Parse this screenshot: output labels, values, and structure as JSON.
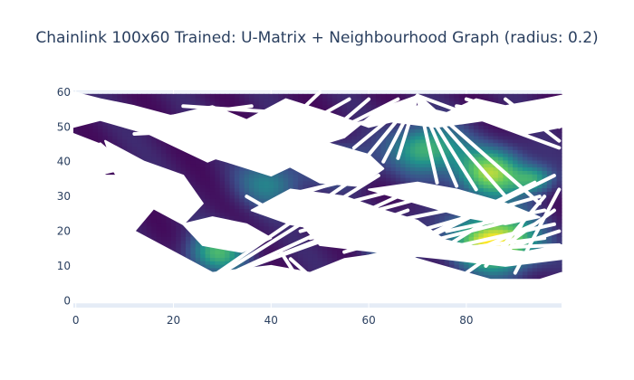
{
  "chart_data": {
    "type": "heatmap",
    "title": "Chainlink 100x60 Trained: U-Matrix + Neighbourhood Graph (radius: 0.2)",
    "xlabel": "",
    "ylabel": "",
    "xlim": [
      -0.5,
      99.5
    ],
    "ylim": [
      -2,
      60.5
    ],
    "x_ticks": [
      0,
      20,
      40,
      60,
      80
    ],
    "y_ticks": [
      0,
      10,
      20,
      30,
      40,
      50,
      60
    ],
    "grid": true,
    "colorscale": "Viridis",
    "colors": {
      "background": "#e5ecf6",
      "low": "#440154",
      "mid": "#21918c",
      "high": "#fde725",
      "edge": "#ffffff",
      "text": "#2a3f5f"
    },
    "heatmap_grid": {
      "nx": 100,
      "ny": 60
    },
    "heat_hotspots": [
      {
        "x": 86,
        "y": 17,
        "value": 1.0,
        "spread": 8
      },
      {
        "x": 85,
        "y": 37,
        "value": 0.75,
        "spread": 7
      },
      {
        "x": 72,
        "y": 44,
        "value": 0.6,
        "spread": 7
      },
      {
        "x": 29,
        "y": 14,
        "value": 0.55,
        "spread": 6
      },
      {
        "x": 40,
        "y": 34,
        "value": 0.35,
        "spread": 7
      },
      {
        "x": 55,
        "y": 40,
        "value": 0.3,
        "spread": 6
      },
      {
        "x": 94,
        "y": 35,
        "value": 0.45,
        "spread": 4
      },
      {
        "x": 65,
        "y": 18,
        "value": 0.4,
        "spread": 6
      }
    ],
    "neighbourhood_polygons": [
      [
        [
          -0.5,
          60
        ],
        [
          5,
          58
        ],
        [
          12,
          56
        ],
        [
          28,
          50
        ],
        [
          40,
          50
        ],
        [
          34,
          44
        ],
        [
          27,
          40
        ],
        [
          15,
          48
        ],
        [
          5,
          52
        ],
        [
          -0.5,
          50
        ]
      ],
      [
        [
          -0.5,
          48
        ],
        [
          5,
          45
        ],
        [
          10,
          38
        ],
        [
          4,
          36
        ],
        [
          -0.5,
          36
        ]
      ],
      [
        [
          -0.5,
          36
        ],
        [
          12,
          36
        ],
        [
          18,
          30
        ],
        [
          12,
          20
        ],
        [
          20,
          14
        ],
        [
          28,
          8
        ],
        [
          40,
          10
        ],
        [
          48,
          8
        ],
        [
          55,
          12
        ],
        [
          65,
          14
        ],
        [
          75,
          10
        ],
        [
          85,
          6
        ],
        [
          95,
          6
        ],
        [
          99.5,
          8
        ],
        [
          99.5,
          -0.5
        ],
        [
          -0.5,
          -0.5
        ]
      ],
      [
        [
          10,
          50
        ],
        [
          28,
          56
        ],
        [
          35,
          52
        ],
        [
          43,
          58
        ],
        [
          52,
          54
        ],
        [
          60,
          50
        ],
        [
          66,
          52
        ],
        [
          70,
          59
        ],
        [
          62,
          55
        ],
        [
          55,
          47
        ],
        [
          48,
          44
        ],
        [
          42,
          40
        ],
        [
          38,
          44
        ],
        [
          32,
          46
        ],
        [
          20,
          46
        ]
      ],
      [
        [
          6,
          46
        ],
        [
          14,
          40
        ],
        [
          22,
          36
        ],
        [
          26,
          28
        ],
        [
          22,
          22
        ],
        [
          14,
          28
        ],
        [
          8,
          38
        ]
      ],
      [
        [
          26,
          42
        ],
        [
          34,
          46
        ],
        [
          44,
          45
        ],
        [
          46,
          40
        ],
        [
          40,
          36
        ],
        [
          31,
          40
        ]
      ],
      [
        [
          42,
          40
        ],
        [
          50,
          46
        ],
        [
          55,
          44
        ],
        [
          60,
          42
        ],
        [
          63,
          38
        ],
        [
          58,
          33
        ],
        [
          50,
          34
        ]
      ],
      [
        [
          36,
          26
        ],
        [
          44,
          32
        ],
        [
          55,
          30
        ],
        [
          63,
          26
        ],
        [
          70,
          23
        ],
        [
          75,
          18
        ],
        [
          70,
          15
        ],
        [
          62,
          18
        ],
        [
          52,
          20
        ],
        [
          44,
          22
        ]
      ],
      [
        [
          60,
          32
        ],
        [
          70,
          34
        ],
        [
          78,
          32
        ],
        [
          88,
          28
        ],
        [
          95,
          24
        ],
        [
          88,
          22
        ],
        [
          80,
          24
        ],
        [
          70,
          28
        ]
      ],
      [
        [
          22,
          22
        ],
        [
          28,
          24
        ],
        [
          35,
          22
        ],
        [
          40,
          18
        ],
        [
          34,
          14
        ],
        [
          26,
          16
        ]
      ],
      [
        [
          62,
          52
        ],
        [
          70,
          56
        ],
        [
          76,
          54
        ],
        [
          82,
          58
        ],
        [
          88,
          56
        ],
        [
          96,
          58
        ],
        [
          99.5,
          59
        ],
        [
          99.5,
          50
        ],
        [
          92,
          48
        ],
        [
          84,
          52
        ],
        [
          74,
          50
        ]
      ],
      [
        [
          45,
          24
        ],
        [
          55,
          22
        ],
        [
          68,
          20
        ],
        [
          80,
          16
        ],
        [
          92,
          14
        ],
        [
          99.5,
          16
        ],
        [
          99.5,
          12
        ],
        [
          88,
          10
        ],
        [
          76,
          12
        ],
        [
          62,
          14
        ],
        [
          50,
          16
        ]
      ]
    ],
    "neighbourhood_lines": [
      [
        [
          70,
          59
        ],
        [
          99,
          44
        ]
      ],
      [
        [
          70,
          59
        ],
        [
          95,
          28
        ]
      ],
      [
        [
          70,
          59
        ],
        [
          88,
          30
        ]
      ],
      [
        [
          70,
          59
        ],
        [
          82,
          32
        ]
      ],
      [
        [
          70,
          59
        ],
        [
          78,
          33
        ]
      ],
      [
        [
          70,
          59
        ],
        [
          74,
          34
        ]
      ],
      [
        [
          70,
          59
        ],
        [
          60,
          42
        ]
      ],
      [
        [
          70,
          59
        ],
        [
          63,
          40
        ]
      ],
      [
        [
          70,
          59
        ],
        [
          66,
          41
        ]
      ],
      [
        [
          70,
          59
        ],
        [
          57,
          44
        ]
      ],
      [
        [
          30,
          8
        ],
        [
          62,
          36
        ]
      ],
      [
        [
          32,
          8
        ],
        [
          66,
          30
        ]
      ],
      [
        [
          34,
          9
        ],
        [
          68,
          26
        ]
      ],
      [
        [
          36,
          10
        ],
        [
          58,
          22
        ]
      ],
      [
        [
          28,
          7
        ],
        [
          60,
          38
        ]
      ],
      [
        [
          40,
          28
        ],
        [
          62,
          38
        ]
      ],
      [
        [
          44,
          24
        ],
        [
          66,
          32
        ]
      ],
      [
        [
          46,
          20
        ],
        [
          72,
          30
        ]
      ],
      [
        [
          48,
          18
        ],
        [
          76,
          26
        ]
      ],
      [
        [
          42,
          30
        ],
        [
          60,
          36
        ]
      ],
      [
        [
          55,
          14
        ],
        [
          95,
          30
        ]
      ],
      [
        [
          58,
          12
        ],
        [
          92,
          24
        ]
      ],
      [
        [
          60,
          10
        ],
        [
          98,
          22
        ]
      ],
      [
        [
          62,
          12
        ],
        [
          96,
          18
        ]
      ],
      [
        [
          65,
          14
        ],
        [
          99,
          16
        ]
      ],
      [
        [
          68,
          16
        ],
        [
          94,
          34
        ]
      ],
      [
        [
          72,
          18
        ],
        [
          98,
          36
        ]
      ],
      [
        [
          76,
          20
        ],
        [
          96,
          26
        ]
      ],
      [
        [
          80,
          8
        ],
        [
          98,
          26
        ]
      ],
      [
        [
          84,
          10
        ],
        [
          96,
          30
        ]
      ],
      [
        [
          88,
          12
        ],
        [
          92,
          24
        ]
      ],
      [
        [
          86,
          14
        ],
        [
          99,
          20
        ]
      ],
      [
        [
          90,
          8
        ],
        [
          99,
          32
        ]
      ],
      [
        [
          78,
          12
        ],
        [
          94,
          22
        ]
      ],
      [
        [
          74,
          14
        ],
        [
          90,
          28
        ]
      ],
      [
        [
          50,
          46
        ],
        [
          60,
          58
        ]
      ],
      [
        [
          52,
          48
        ],
        [
          66,
          58
        ]
      ],
      [
        [
          55,
          50
        ],
        [
          70,
          55
        ]
      ],
      [
        [
          46,
          50
        ],
        [
          56,
          58
        ]
      ],
      [
        [
          44,
          52
        ],
        [
          50,
          60
        ]
      ],
      [
        [
          12,
          48
        ],
        [
          40,
          50
        ]
      ],
      [
        [
          20,
          52
        ],
        [
          42,
          48
        ]
      ],
      [
        [
          14,
          52
        ],
        [
          36,
          56
        ]
      ],
      [
        [
          22,
          56
        ],
        [
          44,
          54
        ]
      ],
      [
        [
          80,
          58
        ],
        [
          99,
          50
        ]
      ],
      [
        [
          84,
          56
        ],
        [
          99,
          54
        ]
      ],
      [
        [
          88,
          58
        ],
        [
          99,
          46
        ]
      ],
      [
        [
          78,
          56
        ],
        [
          96,
          52
        ]
      ],
      [
        [
          5,
          45
        ],
        [
          14,
          34
        ]
      ],
      [
        [
          3,
          40
        ],
        [
          10,
          30
        ]
      ],
      [
        [
          6,
          42
        ],
        [
          12,
          28
        ]
      ],
      [
        [
          70,
          6
        ],
        [
          75,
          1
        ]
      ],
      [
        [
          72,
          4
        ],
        [
          78,
          1
        ]
      ],
      [
        [
          92,
          2
        ],
        [
          96,
          6
        ]
      ],
      [
        [
          94,
          1
        ],
        [
          98,
          6
        ]
      ],
      [
        [
          18,
          2
        ],
        [
          28,
          6
        ]
      ],
      [
        [
          42,
          14
        ],
        [
          48,
          1
        ]
      ],
      [
        [
          44,
          12
        ],
        [
          52,
          2
        ]
      ],
      [
        [
          35,
          30
        ],
        [
          45,
          22
        ]
      ]
    ]
  }
}
